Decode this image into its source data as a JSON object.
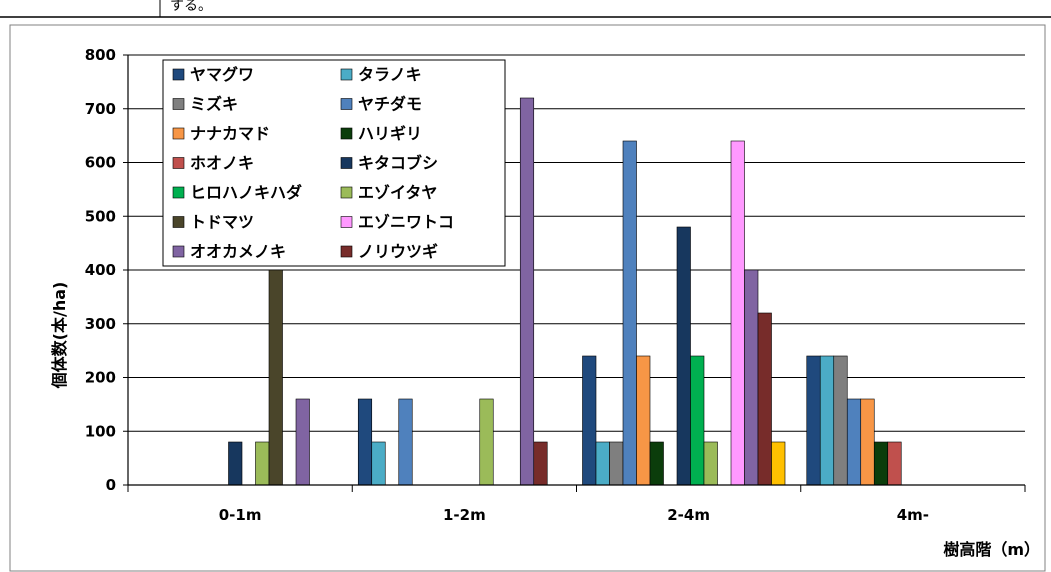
{
  "doc_fragment": {
    "text": "する。"
  },
  "chart_data": {
    "type": "bar",
    "categories": [
      "0-1m",
      "1-2m",
      "2-4m",
      "4m-"
    ],
    "ylabel": "個体数(本/ha)",
    "xlabel": "樹高階（m）",
    "ylim": [
      0,
      800
    ],
    "yticks": [
      0,
      100,
      200,
      300,
      400,
      500,
      600,
      700,
      800
    ],
    "grid": true,
    "legend_position": "top-left",
    "series": [
      {
        "name": "ヤマグワ",
        "color": "#1f497d",
        "values": [
          0,
          160,
          240,
          240
        ]
      },
      {
        "name": "タラノキ",
        "color": "#4bacc6",
        "values": [
          0,
          80,
          80,
          240
        ]
      },
      {
        "name": "ミズキ",
        "color": "#7f7f7f",
        "values": [
          0,
          0,
          80,
          240
        ]
      },
      {
        "name": "ヤチダモ",
        "color": "#4f81bd",
        "values": [
          0,
          160,
          640,
          160
        ]
      },
      {
        "name": "ナナカマド",
        "color": "#f79646",
        "values": [
          0,
          0,
          240,
          160
        ]
      },
      {
        "name": "ハリギリ",
        "color": "#0b3d0b",
        "values": [
          0,
          0,
          80,
          80
        ]
      },
      {
        "name": "ホオノキ",
        "color": "#c0504d",
        "values": [
          0,
          0,
          0,
          80
        ]
      },
      {
        "name": "キタコブシ",
        "color": "#17375e",
        "values": [
          80,
          0,
          480,
          0
        ]
      },
      {
        "name": "ヒロハノキハダ",
        "color": "#00b050",
        "values": [
          0,
          0,
          240,
          0
        ]
      },
      {
        "name": "エゾイタヤ",
        "color": "#9bbb59",
        "values": [
          80,
          160,
          80,
          0
        ]
      },
      {
        "name": "トドマツ",
        "color": "#4a452a",
        "values": [
          400,
          0,
          0,
          0
        ]
      },
      {
        "name": "エゾニワトコ",
        "color": "#ff99ff",
        "values": [
          0,
          0,
          640,
          0
        ]
      },
      {
        "name": "オオカメノキ",
        "color": "#8064a2",
        "values": [
          160,
          720,
          400,
          0
        ]
      },
      {
        "name": "ノリウツギ",
        "color": "#772c2a",
        "values": [
          0,
          80,
          320,
          0
        ]
      },
      {
        "color": "#ffc000",
        "values": [
          0,
          0,
          80,
          0
        ]
      }
    ]
  }
}
